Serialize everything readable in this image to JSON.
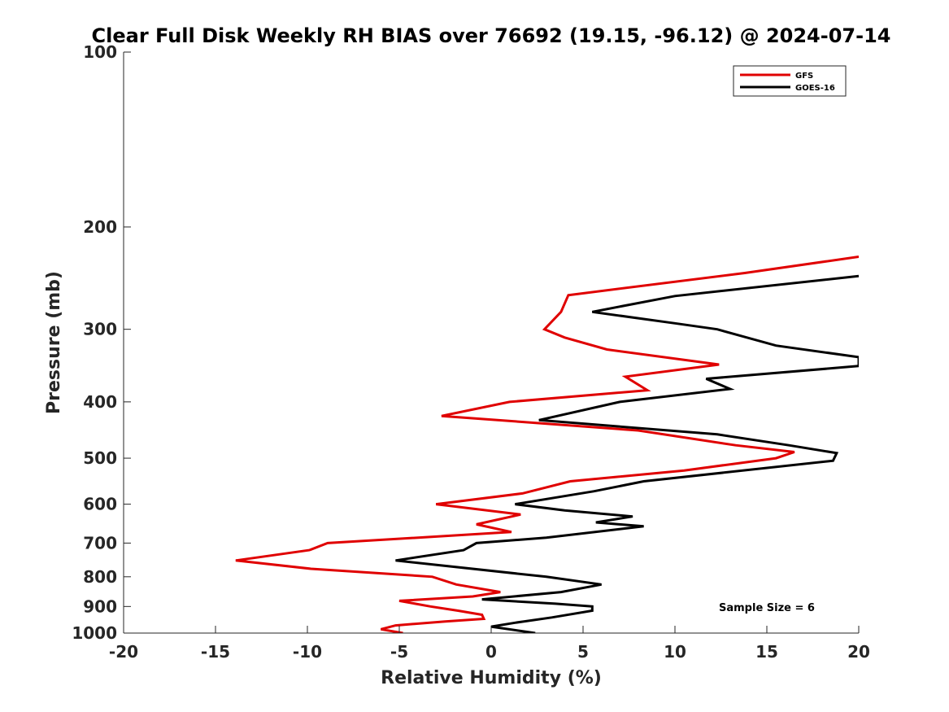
{
  "chart_data": {
    "type": "line",
    "title": "Clear Full Disk Weekly RH BIAS over 76692 (19.15, -96.12) @ 2024-07-14",
    "xlabel": "Relative Humidity (%)",
    "ylabel": "Pressure (mb)",
    "xlim": [
      -20,
      20
    ],
    "ylim": [
      100,
      1000
    ],
    "yscale": "log",
    "yreversed": true,
    "xticks": [
      -20,
      -15,
      -10,
      -5,
      0,
      5,
      10,
      15,
      20
    ],
    "xtick_labels": [
      "-20",
      "-15",
      "-10",
      "-5",
      "0",
      "5",
      "10",
      "15",
      "20"
    ],
    "yticks": [
      100,
      200,
      300,
      400,
      500,
      600,
      700,
      800,
      900,
      1000
    ],
    "ytick_labels": [
      "100",
      "200",
      "300",
      "400",
      "500",
      "600",
      "700",
      "800",
      "900",
      "1000"
    ],
    "grid": false,
    "legend_position": "top-right",
    "annotation": "Sample Size = 6",
    "series": [
      {
        "name": "GFS",
        "color": "#e00000",
        "points": [
          {
            "rh": 20.0,
            "p": 225
          },
          {
            "rh": 13.8,
            "p": 240
          },
          {
            "rh": 4.2,
            "p": 262
          },
          {
            "rh": 3.8,
            "p": 280
          },
          {
            "rh": 2.9,
            "p": 300
          },
          {
            "rh": 4.0,
            "p": 310
          },
          {
            "rh": 6.3,
            "p": 325
          },
          {
            "rh": 12.4,
            "p": 345
          },
          {
            "rh": 7.3,
            "p": 362
          },
          {
            "rh": 8.5,
            "p": 382
          },
          {
            "rh": 1.0,
            "p": 400
          },
          {
            "rh": -2.7,
            "p": 423
          },
          {
            "rh": 8.0,
            "p": 448
          },
          {
            "rh": 13.3,
            "p": 475
          },
          {
            "rh": 16.5,
            "p": 488
          },
          {
            "rh": 15.5,
            "p": 500
          },
          {
            "rh": 10.5,
            "p": 525
          },
          {
            "rh": 4.3,
            "p": 548
          },
          {
            "rh": 1.7,
            "p": 575
          },
          {
            "rh": -3.0,
            "p": 600
          },
          {
            "rh": 1.6,
            "p": 625
          },
          {
            "rh": -0.8,
            "p": 650
          },
          {
            "rh": 1.1,
            "p": 670
          },
          {
            "rh": -8.9,
            "p": 700
          },
          {
            "rh": -9.9,
            "p": 720
          },
          {
            "rh": -13.9,
            "p": 750
          },
          {
            "rh": -9.8,
            "p": 775
          },
          {
            "rh": -3.2,
            "p": 800
          },
          {
            "rh": -1.9,
            "p": 825
          },
          {
            "rh": 0.5,
            "p": 850
          },
          {
            "rh": -1.0,
            "p": 865
          },
          {
            "rh": -5.0,
            "p": 880
          },
          {
            "rh": -3.3,
            "p": 900
          },
          {
            "rh": -1.8,
            "p": 915
          },
          {
            "rh": -0.5,
            "p": 930
          },
          {
            "rh": -0.4,
            "p": 945
          },
          {
            "rh": -2.5,
            "p": 955
          },
          {
            "rh": -5.2,
            "p": 970
          },
          {
            "rh": -6.0,
            "p": 985
          },
          {
            "rh": -4.8,
            "p": 1000
          }
        ]
      },
      {
        "name": "GOES-16",
        "color": "#000000",
        "points": [
          {
            "rh": 20.0,
            "p": 243
          },
          {
            "rh": 10.0,
            "p": 263
          },
          {
            "rh": 5.5,
            "p": 280
          },
          {
            "rh": 10.0,
            "p": 293
          },
          {
            "rh": 12.3,
            "p": 300
          },
          {
            "rh": 15.5,
            "p": 320
          },
          {
            "rh": 20.0,
            "p": 335
          },
          {
            "rh": 20.0,
            "p": 347
          },
          {
            "rh": 11.7,
            "p": 365
          },
          {
            "rh": 13.0,
            "p": 380
          },
          {
            "rh": 7.0,
            "p": 400
          },
          {
            "rh": 2.6,
            "p": 430
          },
          {
            "rh": 12.3,
            "p": 455
          },
          {
            "rh": 16.2,
            "p": 475
          },
          {
            "rh": 18.8,
            "p": 490
          },
          {
            "rh": 18.6,
            "p": 505
          },
          {
            "rh": 8.3,
            "p": 548
          },
          {
            "rh": 5.6,
            "p": 570
          },
          {
            "rh": 1.3,
            "p": 600
          },
          {
            "rh": 4.0,
            "p": 615
          },
          {
            "rh": 7.7,
            "p": 630
          },
          {
            "rh": 5.7,
            "p": 645
          },
          {
            "rh": 8.3,
            "p": 655
          },
          {
            "rh": 3.0,
            "p": 685
          },
          {
            "rh": -0.8,
            "p": 700
          },
          {
            "rh": -1.5,
            "p": 720
          },
          {
            "rh": -5.2,
            "p": 750
          },
          {
            "rh": 3.0,
            "p": 800
          },
          {
            "rh": 6.0,
            "p": 825
          },
          {
            "rh": 3.8,
            "p": 850
          },
          {
            "rh": -0.5,
            "p": 875
          },
          {
            "rh": 3.5,
            "p": 890
          },
          {
            "rh": 5.5,
            "p": 900
          },
          {
            "rh": 5.5,
            "p": 915
          },
          {
            "rh": 3.3,
            "p": 940
          },
          {
            "rh": 1.3,
            "p": 960
          },
          {
            "rh": 0.0,
            "p": 975
          },
          {
            "rh": 2.4,
            "p": 1000
          }
        ]
      }
    ]
  }
}
